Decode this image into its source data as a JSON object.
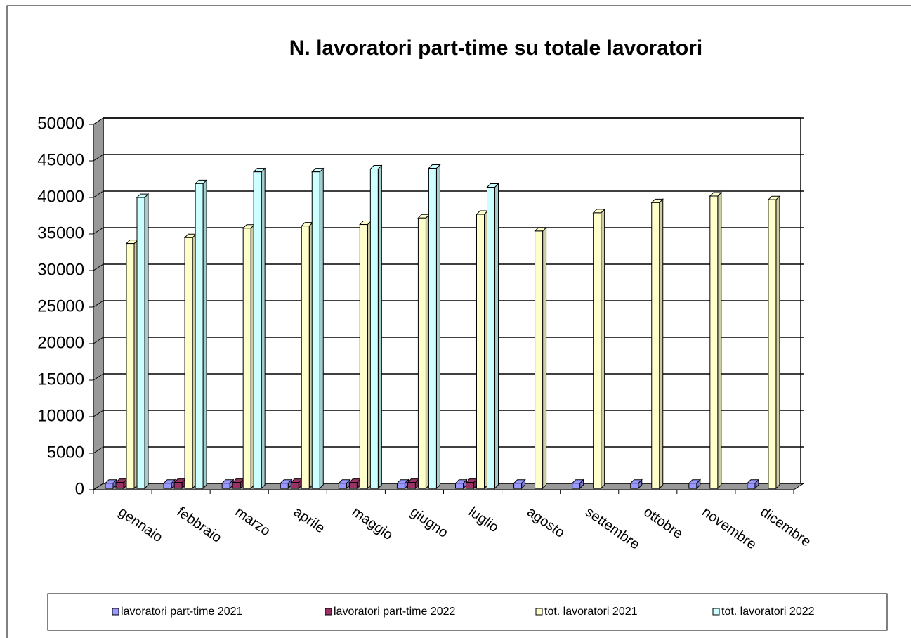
{
  "chart_data": {
    "type": "bar3d",
    "title": "N. lavoratori part-time su totale lavoratori",
    "categories": [
      "gennaio",
      "febbraio",
      "marzo",
      "aprile",
      "maggio",
      "giugno",
      "luglio",
      "agosto",
      "settembre",
      "ottobre",
      "novembre",
      "dicembre"
    ],
    "series": [
      {
        "name": "lavoratori part-time 2021",
        "color": "#9999ff",
        "values": [
          700,
          700,
          700,
          700,
          700,
          700,
          700,
          700,
          700,
          700,
          700,
          700
        ]
      },
      {
        "name": "lavoratori part-time 2022",
        "color": "#993366",
        "values": [
          800,
          800,
          800,
          800,
          800,
          800,
          800,
          null,
          null,
          null,
          null,
          null
        ]
      },
      {
        "name": "tot. lavoratori 2021",
        "color": "#ffffcc",
        "values": [
          33500,
          34300,
          35600,
          35900,
          36100,
          37000,
          37500,
          35200,
          37700,
          39100,
          40000,
          39500
        ]
      },
      {
        "name": "tot. lavoratori 2022",
        "color": "#ccffff",
        "values": [
          39800,
          41700,
          43300,
          43300,
          43700,
          43800,
          41200,
          null,
          null,
          null,
          null,
          null
        ]
      }
    ],
    "ylim": [
      0,
      50000
    ],
    "yticks": [
      0,
      5000,
      10000,
      15000,
      20000,
      25000,
      30000,
      35000,
      40000,
      45000,
      50000
    ],
    "grid": true,
    "legend": "bottom"
  }
}
